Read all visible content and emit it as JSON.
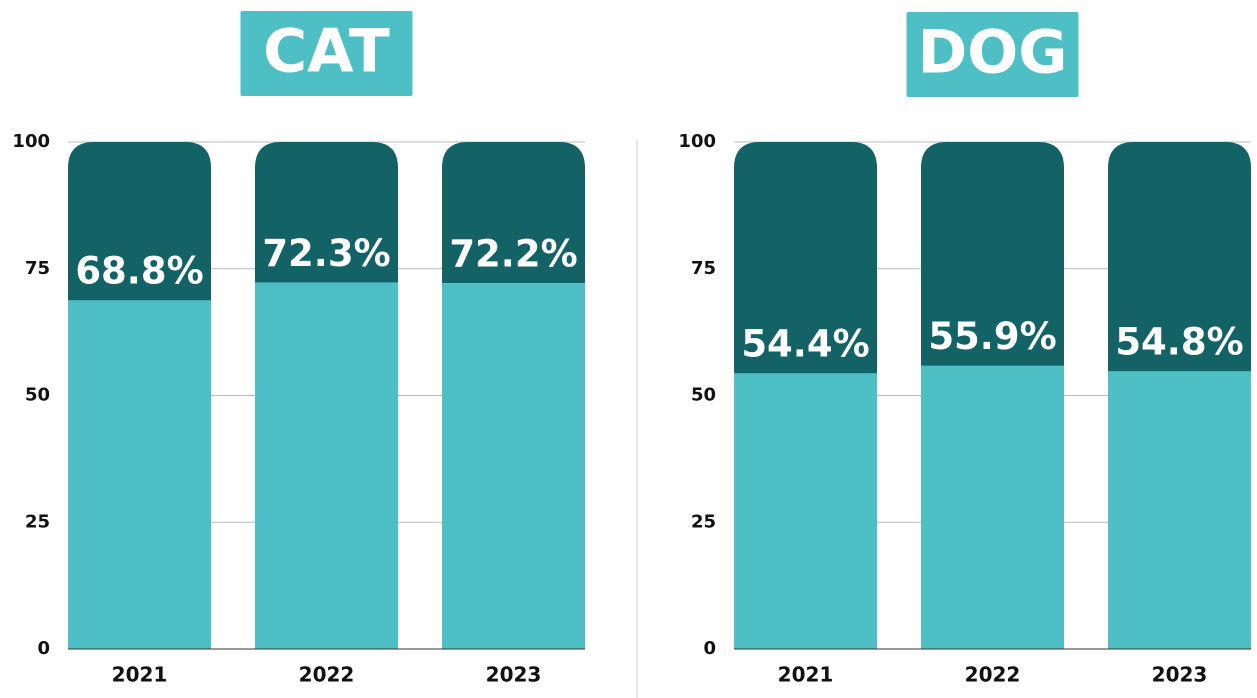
{
  "chart_data": [
    {
      "type": "bar",
      "title": "CAT",
      "categories": [
        "2021",
        "2022",
        "2023"
      ],
      "values": [
        68.8,
        72.3,
        72.2
      ],
      "value_labels": [
        "68.8%",
        "72.3%",
        "72.2%"
      ],
      "color": "#4fbfc6",
      "track_color": "#136266",
      "ylim": [
        0,
        100
      ],
      "yticks": [
        0,
        25,
        50,
        75,
        100
      ],
      "grid": true
    },
    {
      "type": "bar",
      "title": "DOG",
      "categories": [
        "2021",
        "2022",
        "2023"
      ],
      "values": [
        54.4,
        55.9,
        54.8
      ],
      "value_labels": [
        "54.4%",
        "55.9%",
        "54.8%"
      ],
      "color": "#4fbfc6",
      "track_color": "#136266",
      "ylim": [
        0,
        100
      ],
      "yticks": [
        0,
        25,
        50,
        75,
        100
      ],
      "grid": true
    }
  ]
}
